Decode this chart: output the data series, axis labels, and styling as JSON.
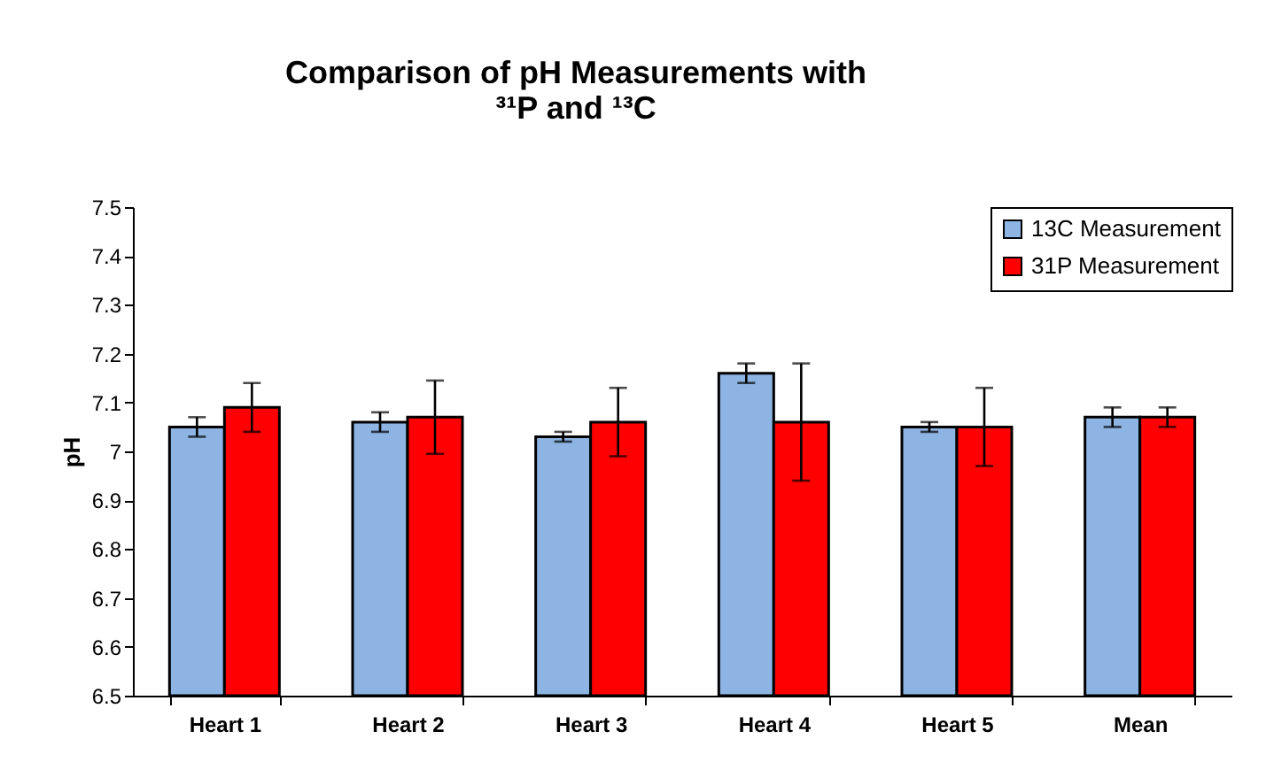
{
  "chart_data": {
    "type": "bar",
    "title": "Comparison of pH Measurements with ³¹P and ¹³C",
    "ylabel": "pH",
    "categories": [
      "Heart 1",
      "Heart 2",
      "Heart 3",
      "Heart 4",
      "Heart 5",
      "Mean"
    ],
    "series": [
      {
        "name": "13C Measurement",
        "color": "#8db4e2",
        "values": [
          7.05,
          7.06,
          7.03,
          7.16,
          7.05,
          7.07
        ],
        "errors": [
          0.02,
          0.02,
          0.01,
          0.02,
          0.01,
          0.02
        ]
      },
      {
        "name": "31P Measurement",
        "color": "#ff0000",
        "values": [
          7.09,
          7.07,
          7.06,
          7.06,
          7.05,
          7.07
        ],
        "errors": [
          0.05,
          0.075,
          0.07,
          0.12,
          0.08,
          0.02
        ]
      }
    ],
    "ylim": [
      6.5,
      7.5
    ],
    "yticks": [
      6.5,
      6.6,
      6.7,
      6.8,
      6.9,
      7,
      7.1,
      7.2,
      7.3,
      7.4,
      7.5
    ],
    "legend": "top right",
    "grid": false
  }
}
